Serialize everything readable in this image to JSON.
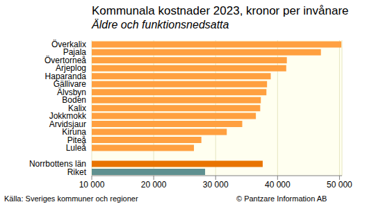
{
  "chart_data": {
    "type": "bar",
    "orientation": "horizontal",
    "title": "Kommunala kostnader 2023, kronor per invånare",
    "subtitle": "Äldre och funktionsnedsatta",
    "annotations": [
      "Källa: Sveriges kommuner och regioner",
      "© Pantzare Information AB"
    ],
    "categories": [
      "Överkalix",
      "Pajala",
      "Övertorneå",
      "Arjeplog",
      "Haparanda",
      "Gällivare",
      "Älvsbyn",
      "Boden",
      "Kalix",
      "Jokkmokk",
      "Arvidsjaur",
      "Kiruna",
      "Piteå",
      "Luleå",
      null,
      "Norrbottens län",
      "Riket"
    ],
    "values": [
      50300,
      47000,
      41500,
      41400,
      38900,
      38300,
      38200,
      37300,
      37200,
      36500,
      34300,
      31800,
      27700,
      26500,
      null,
      37600,
      28300
    ],
    "colors": [
      "#ffa040",
      "#ffa040",
      "#ffa040",
      "#ffa040",
      "#ffa040",
      "#ffa040",
      "#ffa040",
      "#ffa040",
      "#ffa040",
      "#ffa040",
      "#ffa040",
      "#ffa040",
      "#ffa040",
      "#ffa040",
      null,
      "#e87400",
      "#5f9090"
    ],
    "xlim": [
      10000,
      50400
    ],
    "xticks": [
      {
        "value": 10000,
        "label": "10 000"
      },
      {
        "value": 20000,
        "label": "20 000"
      },
      {
        "value": 30000,
        "label": "30 000"
      },
      {
        "value": 40000,
        "label": "40 000"
      },
      {
        "value": 50000,
        "label": "50 000"
      }
    ],
    "grid": true
  }
}
